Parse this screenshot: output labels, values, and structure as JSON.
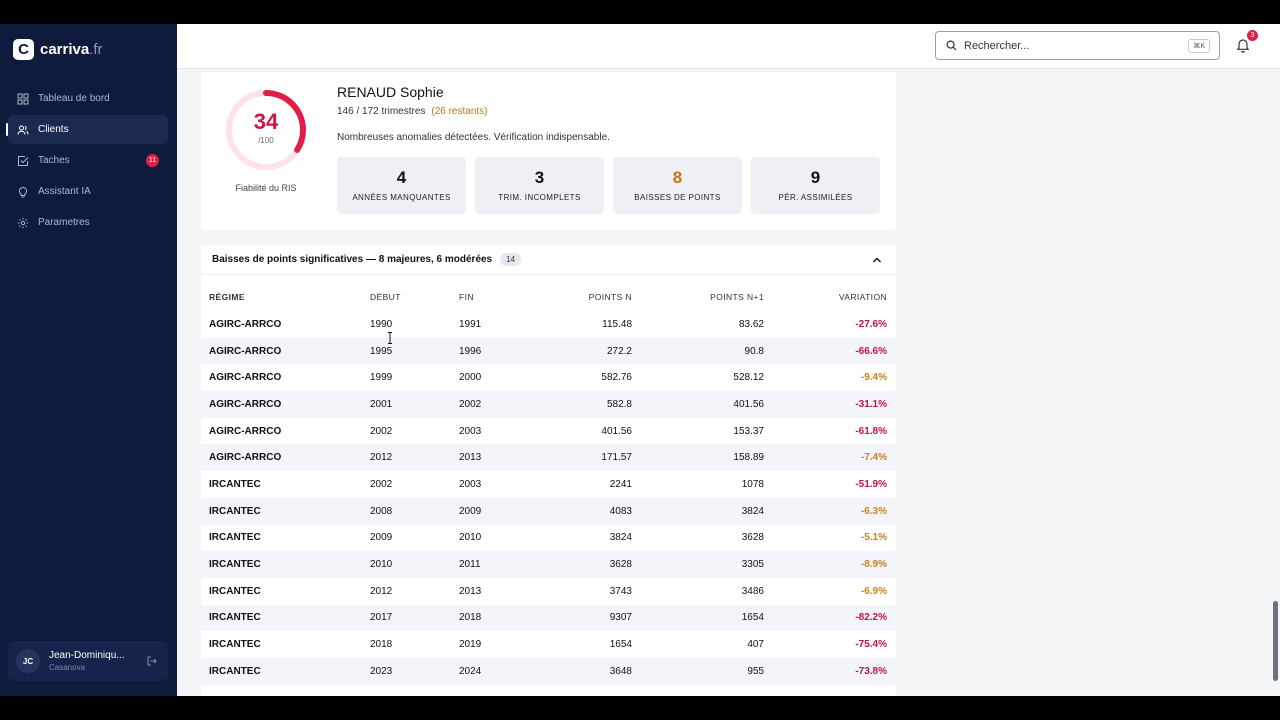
{
  "brand": {
    "mark": "C",
    "name": "carriva",
    "tld": ".fr"
  },
  "sidebar": {
    "items": [
      {
        "label": "Tableau de bord",
        "icon": "grid-icon"
      },
      {
        "label": "Clients",
        "icon": "users-icon",
        "active": true
      },
      {
        "label": "Taches",
        "icon": "check-square-icon",
        "badge": "11"
      },
      {
        "label": "Assistant IA",
        "icon": "lightbulb-icon"
      },
      {
        "label": "Parametres",
        "icon": "gear-icon"
      }
    ],
    "user": {
      "initials": "JC",
      "name": "Jean-Dominiqu...",
      "sub": "Casanova"
    }
  },
  "topbar": {
    "search_placeholder": "Rechercher...",
    "shortcut": "⌘K",
    "notifications": "3"
  },
  "client": {
    "score": "34",
    "score_max": "/100",
    "score_fraction": 0.34,
    "score_label": "Fiabilité du RIS",
    "name": "RENAUD Sophie",
    "quarters": "146 / 172 trimestres",
    "remaining": "(26 restants)",
    "note": "Nombreuses anomalies détectées. Vérification indispensable.",
    "stats": [
      {
        "value": "4",
        "label": "ANNÉES MANQUANTES"
      },
      {
        "value": "3",
        "label": "TRIM. INCOMPLETS"
      },
      {
        "value": "8",
        "label": "BAISSES DE POINTS",
        "accent": "#c77512"
      },
      {
        "value": "9",
        "label": "PÉR. ASSIMILÉES"
      }
    ]
  },
  "section": {
    "title": "Baisses de points significatives — 8 majeures, 6 modérées",
    "count": "14",
    "columns": [
      "RÉGIME",
      "DÉBUT",
      "FIN",
      "POINTS N",
      "POINTS N+1",
      "VARIATION"
    ],
    "rows": [
      [
        "AGIRC-ARRCO",
        "1990",
        "1991",
        "115.48",
        "83.62",
        "-27.6%",
        "major"
      ],
      [
        "AGIRC-ARRCO",
        "1995",
        "1996",
        "272.2",
        "90.8",
        "-66.6%",
        "major"
      ],
      [
        "AGIRC-ARRCO",
        "1999",
        "2000",
        "582.76",
        "528.12",
        "-9.4%",
        "moderate"
      ],
      [
        "AGIRC-ARRCO",
        "2001",
        "2002",
        "582.8",
        "401.56",
        "-31.1%",
        "major"
      ],
      [
        "AGIRC-ARRCO",
        "2002",
        "2003",
        "401.56",
        "153.37",
        "-61.8%",
        "major"
      ],
      [
        "AGIRC-ARRCO",
        "2012",
        "2013",
        "171.57",
        "158.89",
        "-7.4%",
        "moderate"
      ],
      [
        "IRCANTEC",
        "2002",
        "2003",
        "2241",
        "1078",
        "-51.9%",
        "major"
      ],
      [
        "IRCANTEC",
        "2008",
        "2009",
        "4083",
        "3824",
        "-6.3%",
        "moderate"
      ],
      [
        "IRCANTEC",
        "2009",
        "2010",
        "3824",
        "3628",
        "-5.1%",
        "moderate"
      ],
      [
        "IRCANTEC",
        "2010",
        "2011",
        "3628",
        "3305",
        "-8.9%",
        "moderate"
      ],
      [
        "IRCANTEC",
        "2012",
        "2013",
        "3743",
        "3486",
        "-6.9%",
        "moderate"
      ],
      [
        "IRCANTEC",
        "2017",
        "2018",
        "9307",
        "1654",
        "-82.2%",
        "major"
      ],
      [
        "IRCANTEC",
        "2018",
        "2019",
        "1654",
        "407",
        "-75.4%",
        "major"
      ],
      [
        "IRCANTEC",
        "2023",
        "2024",
        "3648",
        "955",
        "-73.8%",
        "major"
      ]
    ]
  }
}
